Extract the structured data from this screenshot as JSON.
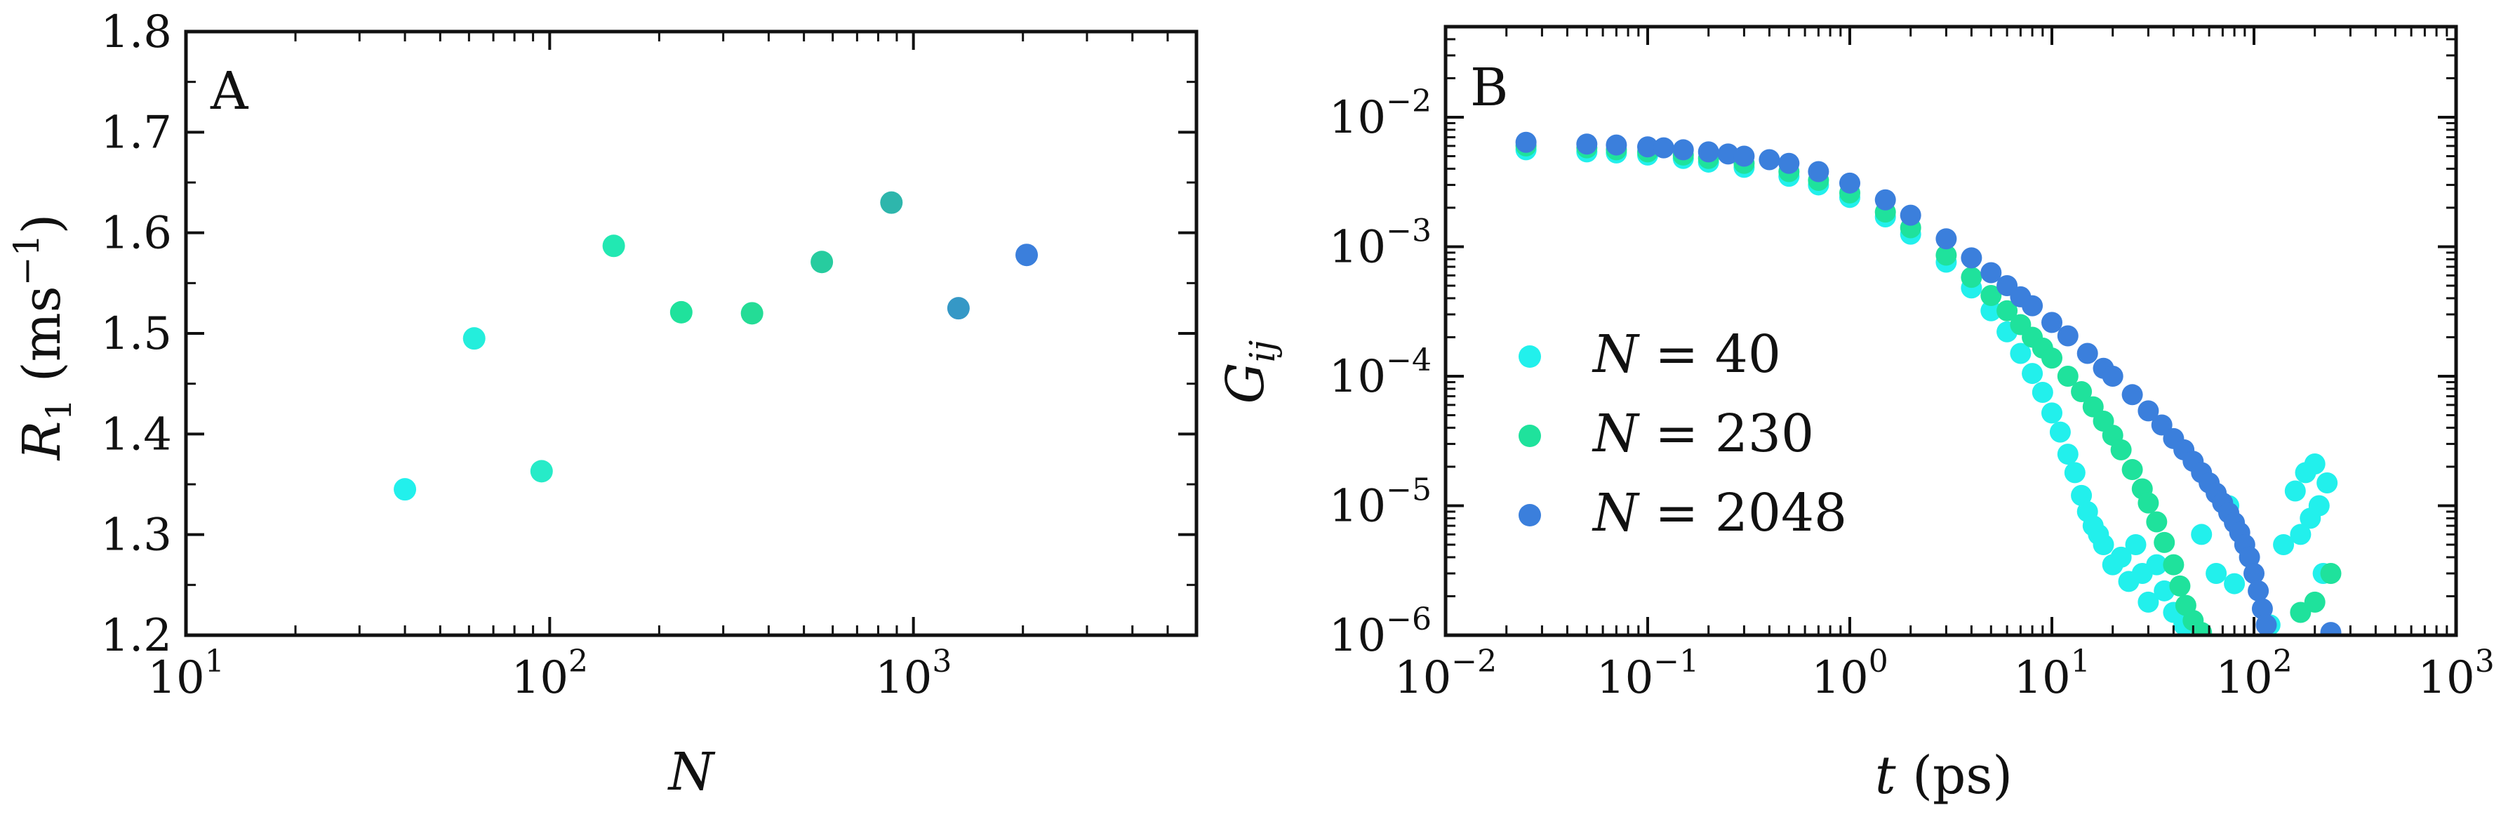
{
  "chart_data": [
    {
      "panel": "A",
      "type": "scatter",
      "xscale": "log",
      "xlim": [
        10,
        6000
      ],
      "ylim": [
        1.2,
        1.8
      ],
      "xlabel": "N",
      "ylabel": "R_1 (ms^-1)",
      "x_ticks": [
        {
          "mant": "10",
          "exp": "1"
        },
        {
          "mant": "10",
          "exp": "2"
        },
        {
          "mant": "10",
          "exp": "3"
        }
      ],
      "y_ticks": [
        "1.2",
        "1.3",
        "1.4",
        "1.5",
        "1.6",
        "1.7",
        "1.8"
      ],
      "points": [
        {
          "x": 40,
          "y": 1.345,
          "color": "#22f0ec"
        },
        {
          "x": 62,
          "y": 1.495,
          "color": "#24eedc"
        },
        {
          "x": 95,
          "y": 1.363,
          "color": "#27ebc8"
        },
        {
          "x": 150,
          "y": 1.587,
          "color": "#22e8b2"
        },
        {
          "x": 230,
          "y": 1.521,
          "color": "#1fe29c"
        },
        {
          "x": 360,
          "y": 1.52,
          "color": "#24dc96"
        },
        {
          "x": 560,
          "y": 1.571,
          "color": "#27cc9f"
        },
        {
          "x": 870,
          "y": 1.63,
          "color": "#2eb6ac"
        },
        {
          "x": 1330,
          "y": 1.525,
          "color": "#3598c6"
        },
        {
          "x": 2048,
          "y": 1.578,
          "color": "#3b7fdc"
        }
      ]
    },
    {
      "panel": "B",
      "type": "scatter",
      "xscale": "log",
      "yscale": "log",
      "xlim": [
        0.01,
        1000
      ],
      "ylim": [
        1e-06,
        0.05
      ],
      "xlabel": "t (ps)",
      "ylabel": "G_ij",
      "x_ticks": [
        {
          "mant": "10",
          "exp": "−2"
        },
        {
          "mant": "10",
          "exp": "−1"
        },
        {
          "mant": "10",
          "exp": "0"
        },
        {
          "mant": "10",
          "exp": "1"
        },
        {
          "mant": "10",
          "exp": "2"
        },
        {
          "mant": "10",
          "exp": "3"
        }
      ],
      "y_ticks": [
        {
          "mant": "10",
          "exp": "−6"
        },
        {
          "mant": "10",
          "exp": "−5"
        },
        {
          "mant": "10",
          "exp": "−4"
        },
        {
          "mant": "10",
          "exp": "−3"
        },
        {
          "mant": "10",
          "exp": "−2"
        }
      ],
      "legend": {
        "placement": "lower-left",
        "entries": [
          {
            "label": "N = 40",
            "color": "#22f0ec"
          },
          {
            "label": "N = 230",
            "color": "#1fe29c"
          },
          {
            "label": "N = 2048",
            "color": "#3b7fdc"
          }
        ]
      },
      "series": [
        {
          "name": "N = 40",
          "color": "#22f0ec",
          "points": [
            [
              0.025,
              0.0056
            ],
            [
              0.05,
              0.0054
            ],
            [
              0.07,
              0.0053
            ],
            [
              0.1,
              0.0051
            ],
            [
              0.15,
              0.0048
            ],
            [
              0.2,
              0.0045
            ],
            [
              0.3,
              0.0041
            ],
            [
              0.5,
              0.0035
            ],
            [
              0.7,
              0.003
            ],
            [
              1.0,
              0.0024
            ],
            [
              1.5,
              0.0017
            ],
            [
              2,
              0.00125
            ],
            [
              3,
              0.00076
            ],
            [
              4,
              0.00048
            ],
            [
              5,
              0.00032
            ],
            [
              6,
              0.00022
            ],
            [
              7,
              0.00015
            ],
            [
              8,
              0.000105
            ],
            [
              9,
              7.5e-05
            ],
            [
              10,
              5.2e-05
            ],
            [
              11,
              3.7e-05
            ],
            [
              12,
              2.5e-05
            ],
            [
              13,
              1.8e-05
            ],
            [
              14,
              1.2e-05
            ],
            [
              15,
              9e-06
            ],
            [
              16,
              7e-06
            ],
            [
              17,
              6e-06
            ],
            [
              18,
              5e-06
            ],
            [
              20,
              3.5e-06
            ],
            [
              22,
              4e-06
            ],
            [
              24,
              2.6e-06
            ],
            [
              26,
              5e-06
            ],
            [
              28,
              3e-06
            ],
            [
              30,
              1.8e-06
            ],
            [
              33,
              3.5e-06
            ],
            [
              36,
              2.2e-06
            ],
            [
              40,
              1.5e-06
            ],
            [
              45,
              1.2e-06
            ],
            [
              55,
              6e-06
            ],
            [
              65,
              3e-06
            ],
            [
              75,
              1e-05
            ],
            [
              80,
              2.5e-06
            ],
            [
              120,
              1.2e-06
            ],
            [
              140,
              5e-06
            ],
            [
              160,
              1.3e-05
            ],
            [
              170,
              6e-06
            ],
            [
              180,
              1.8e-05
            ],
            [
              190,
              8e-06
            ],
            [
              200,
              2.1e-05
            ],
            [
              210,
              1e-05
            ],
            [
              220,
              3e-06
            ],
            [
              230,
              1.5e-05
            ]
          ]
        },
        {
          "name": "N = 230",
          "color": "#1fe29c",
          "points": [
            [
              0.025,
              0.006
            ],
            [
              0.05,
              0.0058
            ],
            [
              0.07,
              0.0056
            ],
            [
              0.1,
              0.0054
            ],
            [
              0.15,
              0.0051
            ],
            [
              0.2,
              0.0048
            ],
            [
              0.3,
              0.0044
            ],
            [
              0.5,
              0.0038
            ],
            [
              0.7,
              0.00325
            ],
            [
              1.0,
              0.0026
            ],
            [
              1.5,
              0.00185
            ],
            [
              2,
              0.0014
            ],
            [
              3,
              0.00086
            ],
            [
              4,
              0.00058
            ],
            [
              5,
              0.00042
            ],
            [
              6,
              0.00032
            ],
            [
              7,
              0.00025
            ],
            [
              8,
              0.0002
            ],
            [
              9,
              0.000165
            ],
            [
              10,
              0.000138
            ],
            [
              12,
              0.0001
            ],
            [
              14,
              7.6e-05
            ],
            [
              16,
              5.8e-05
            ],
            [
              18,
              4.5e-05
            ],
            [
              20,
              3.5e-05
            ],
            [
              22,
              2.7e-05
            ],
            [
              25,
              1.9e-05
            ],
            [
              28,
              1.35e-05
            ],
            [
              30,
              1.05e-05
            ],
            [
              33,
              7.5e-06
            ],
            [
              36,
              5.2e-06
            ],
            [
              40,
              3.5e-06
            ],
            [
              43,
              2.4e-06
            ],
            [
              46,
              1.7e-06
            ],
            [
              50,
              1.3e-06
            ],
            [
              55,
              1.05e-06
            ],
            [
              170,
              1.5e-06
            ],
            [
              200,
              1.8e-06
            ],
            [
              240,
              3e-06
            ]
          ]
        },
        {
          "name": "N = 2048",
          "color": "#3b7fdc",
          "points": [
            [
              0.025,
              0.0064
            ],
            [
              0.05,
              0.0062
            ],
            [
              0.07,
              0.0061
            ],
            [
              0.1,
              0.0059
            ],
            [
              0.12,
              0.0058
            ],
            [
              0.15,
              0.0056
            ],
            [
              0.2,
              0.0054
            ],
            [
              0.25,
              0.0052
            ],
            [
              0.3,
              0.005
            ],
            [
              0.4,
              0.0047
            ],
            [
              0.5,
              0.0044
            ],
            [
              0.7,
              0.0038
            ],
            [
              1.0,
              0.0031
            ],
            [
              1.5,
              0.0023
            ],
            [
              2,
              0.00175
            ],
            [
              3,
              0.00115
            ],
            [
              4,
              0.00082
            ],
            [
              5,
              0.00063
            ],
            [
              6,
              0.0005
            ],
            [
              7,
              0.00041
            ],
            [
              8,
              0.00035
            ],
            [
              10,
              0.00026
            ],
            [
              12,
              0.000205
            ],
            [
              15,
              0.00015
            ],
            [
              18,
              0.000115
            ],
            [
              20,
              0.0001
            ],
            [
              25,
              7.2e-05
            ],
            [
              30,
              5.4e-05
            ],
            [
              35,
              4.2e-05
            ],
            [
              40,
              3.3e-05
            ],
            [
              45,
              2.7e-05
            ],
            [
              50,
              2.2e-05
            ],
            [
              55,
              1.8e-05
            ],
            [
              60,
              1.5e-05
            ],
            [
              65,
              1.25e-05
            ],
            [
              70,
              1.05e-05
            ],
            [
              75,
              8.8e-06
            ],
            [
              80,
              7.4e-06
            ],
            [
              85,
              6.2e-06
            ],
            [
              90,
              5e-06
            ],
            [
              95,
              4e-06
            ],
            [
              100,
              3e-06
            ],
            [
              105,
              2.2e-06
            ],
            [
              110,
              1.6e-06
            ],
            [
              115,
              1.2e-06
            ],
            [
              240,
              1.05e-06
            ]
          ]
        }
      ]
    }
  ]
}
